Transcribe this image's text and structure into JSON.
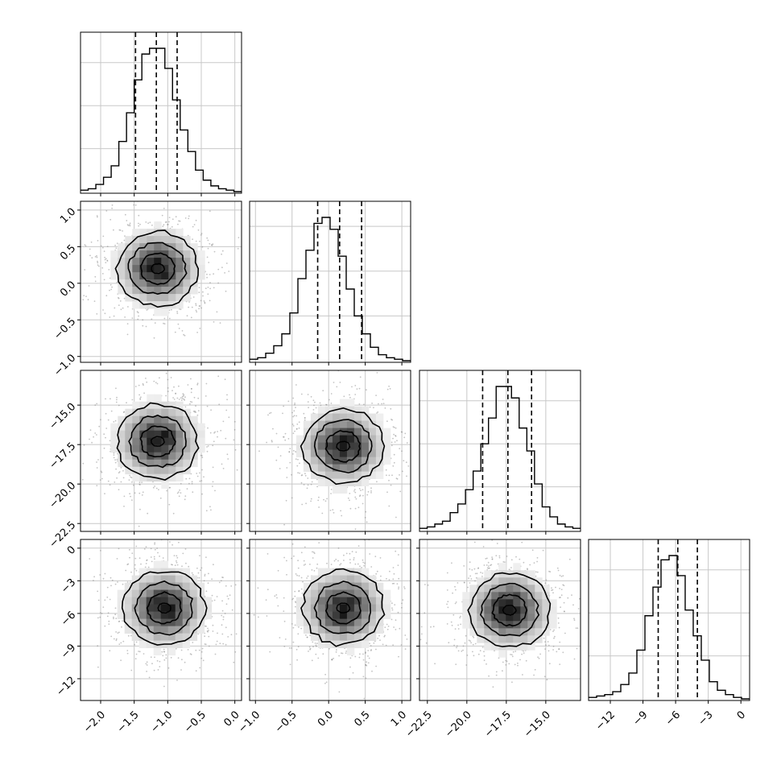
{
  "chart_data": {
    "type": "corner",
    "grid": true,
    "parameters": [
      {
        "range": [
          -2.3,
          0.1
        ],
        "ticks": [
          -2.0,
          -1.5,
          -1.0,
          -0.5,
          0.0
        ],
        "tick_labels": [
          "−2.0",
          "−1.5",
          "−1.0",
          "−0.5",
          "0.0"
        ],
        "quantiles": [
          -1.48,
          -1.17,
          -0.86
        ],
        "hist_counts": [
          1,
          2,
          5,
          10,
          18,
          35,
          55,
          78,
          96,
          100,
          100,
          86,
          64,
          43,
          28,
          15,
          8,
          4,
          2,
          1,
          0
        ]
      },
      {
        "range": [
          -1.08,
          1.12
        ],
        "ticks": [
          -1.0,
          -0.5,
          0.0,
          0.5,
          1.0
        ],
        "tick_labels": [
          "−1.0",
          "−0.5",
          "0.0",
          "0.5",
          "1.0"
        ],
        "quantiles": [
          -0.15,
          0.15,
          0.45
        ],
        "hist_counts": [
          1,
          2,
          5,
          10,
          18,
          32,
          55,
          74,
          92,
          96,
          88,
          70,
          48,
          30,
          18,
          9,
          4,
          2,
          1,
          0
        ]
      },
      {
        "range": [
          -23.0,
          -12.8
        ],
        "ticks": [
          -22.5,
          -20.0,
          -17.5,
          -15.0
        ],
        "tick_labels": [
          "−22.5",
          "−20.0",
          "−17.5",
          "−15.0"
        ],
        "quantiles": [
          -19.0,
          -17.4,
          -15.9
        ],
        "hist_counts": [
          1,
          2,
          4,
          6,
          12,
          18,
          28,
          41,
          60,
          78,
          100,
          100,
          92,
          71,
          55,
          32,
          16,
          9,
          4,
          2,
          1
        ]
      },
      {
        "range": [
          -14.0,
          0.8
        ],
        "ticks": [
          -12,
          -9,
          -6,
          -3,
          0
        ],
        "tick_labels": [
          "−12",
          "−9",
          "−6",
          "−3",
          "0"
        ],
        "quantiles": [
          -7.6,
          -5.8,
          -4.0
        ],
        "hist_counts": [
          1,
          2,
          3,
          5,
          10,
          18,
          34,
          58,
          78,
          97,
          100,
          86,
          62,
          44,
          27,
          12,
          6,
          3,
          1,
          0
        ]
      }
    ],
    "peaks": {
      "1-0": [
        -1.15,
        0.2
      ],
      "2-0": [
        -1.15,
        -17.3
      ],
      "2-1": [
        0.2,
        -17.6
      ],
      "3-0": [
        -1.05,
        -5.5
      ],
      "3-1": [
        0.2,
        -5.5
      ],
      "3-2": [
        -17.3,
        -5.7
      ]
    }
  }
}
